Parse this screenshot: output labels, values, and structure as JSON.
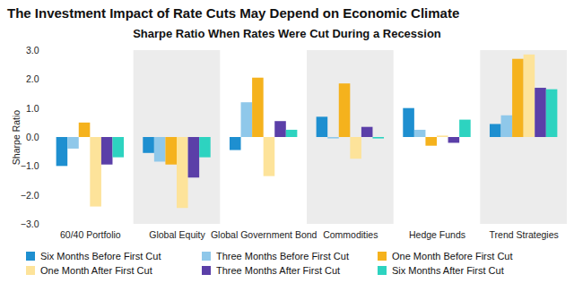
{
  "chart_data": {
    "type": "bar",
    "title": "The Investment Impact of Rate Cuts May Depend on Economic Climate",
    "subtitle": "Sharpe Ratio When Rates Were Cut During a Recession",
    "y_label": "Sharpe Ratio",
    "categories": [
      "60/40 Portfolio",
      "Global Equity",
      "Global Government Bond",
      "Commodities",
      "Hedge Funds",
      "Trend Strategies"
    ],
    "series": [
      {
        "name": "Six Months Before First Cut",
        "color": "#1e8fd0",
        "values": [
          -1.0,
          -0.55,
          -0.45,
          0.7,
          1.0,
          0.45
        ]
      },
      {
        "name": "Three Months Before First Cut",
        "color": "#8fc8ea",
        "values": [
          -0.4,
          -0.85,
          1.2,
          -0.05,
          0.25,
          0.75
        ]
      },
      {
        "name": "One Month Before First Cut",
        "color": "#f5b21d",
        "values": [
          0.5,
          -0.95,
          2.05,
          1.85,
          -0.3,
          2.7
        ]
      },
      {
        "name": "One Month After First Cut",
        "color": "#fde39a",
        "values": [
          -2.4,
          -2.45,
          -1.35,
          -0.75,
          0.05,
          2.85
        ]
      },
      {
        "name": "Three Months After First Cut",
        "color": "#5b3fa8",
        "values": [
          -0.95,
          -1.4,
          0.55,
          0.35,
          -0.2,
          1.7
        ]
      },
      {
        "name": "Six Months After First Cut",
        "color": "#2dd3c0",
        "values": [
          -0.7,
          -0.7,
          0.25,
          -0.05,
          0.6,
          1.65
        ]
      }
    ],
    "ylim": [
      -3,
      3
    ],
    "yticks": [
      -3,
      -2,
      -1,
      0,
      1,
      2,
      3
    ],
    "grid": false,
    "legend": "bottom"
  }
}
